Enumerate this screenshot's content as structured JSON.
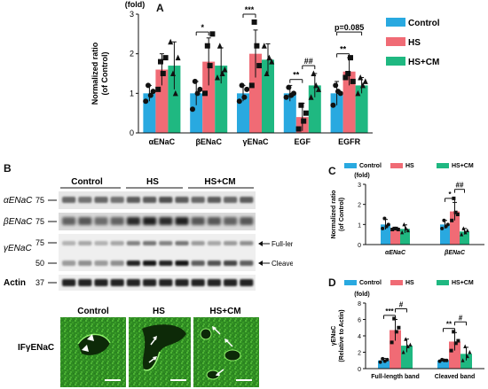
{
  "panels": {
    "a": "A",
    "b": "B",
    "c": "C",
    "d": "D"
  },
  "colors": {
    "control": "#29a9e0",
    "hs": "#f06b75",
    "hscm": "#1fb881"
  },
  "legend": [
    "Control",
    "HS",
    "HS+CM"
  ],
  "blot": {
    "groups": [
      "Control",
      "HS",
      "HS+CM"
    ],
    "rows": [
      {
        "label": "αENaC",
        "mw": "75"
      },
      {
        "label": "βENaC",
        "mw": "75"
      },
      {
        "label": "γENaC",
        "mw": "75"
      },
      {
        "label": "",
        "mw": "50"
      },
      {
        "label": "Actin",
        "mw": "37"
      }
    ],
    "full_length": "Full-length band",
    "cleaved": "Cleaved band"
  },
  "if_panel": {
    "label": "IFγENaC",
    "groups": [
      "Control",
      "HS",
      "HS+CM"
    ]
  },
  "chart_data": [
    {
      "type": "bar",
      "panel": "A",
      "unit_label": "(fold)",
      "ylabel": "Normalized ratio\n(of Control)",
      "categories": [
        "αENaC",
        "βENaC",
        "γENaC",
        "EGF",
        "EGFR"
      ],
      "ylim": [
        0,
        3
      ],
      "yticks": [
        0,
        1,
        2,
        3
      ],
      "series": [
        {
          "name": "Control",
          "values": [
            1.0,
            1.0,
            1.0,
            1.0,
            1.0
          ],
          "err": [
            0.2,
            0.3,
            0.2,
            0.2,
            0.3
          ],
          "points": [
            [
              0.8,
              1.2,
              0.95,
              1.05
            ],
            [
              0.6,
              1.3,
              1.0,
              1.1
            ],
            [
              0.8,
              1.2,
              0.9,
              1.1
            ],
            [
              0.9,
              1.15,
              0.95,
              1.0
            ],
            [
              0.7,
              1.2,
              1.05,
              1.0
            ]
          ]
        },
        {
          "name": "HS",
          "values": [
            1.6,
            1.8,
            2.0,
            0.4,
            1.55
          ],
          "err": [
            0.4,
            0.6,
            0.6,
            0.35,
            0.35
          ],
          "points": [
            [
              1.1,
              1.8,
              1.5,
              1.9
            ],
            [
              1.0,
              2.2,
              1.7,
              2.5
            ],
            [
              1.2,
              2.8,
              2.2,
              1.7
            ],
            [
              0.1,
              0.7,
              0.3,
              0.5
            ],
            [
              1.4,
              1.5,
              1.9,
              1.3
            ]
          ]
        },
        {
          "name": "HS+CM",
          "values": [
            1.7,
            1.7,
            1.85,
            1.2,
            1.2
          ],
          "err": [
            0.6,
            0.45,
            0.4,
            0.3,
            0.2
          ],
          "points": [
            [
              2.3,
              1.5,
              1.0,
              1.9
            ],
            [
              1.4,
              2.2,
              1.5,
              1.6
            ],
            [
              2.2,
              1.5,
              1.9,
              1.8
            ],
            [
              0.9,
              1.5,
              1.2,
              1.1
            ],
            [
              1.0,
              1.4,
              1.2,
              1.3
            ]
          ]
        }
      ],
      "annotations": [
        {
          "text": "*",
          "cat": 1,
          "from": 0,
          "to": 1,
          "level": 2.55
        },
        {
          "text": "***",
          "cat": 2,
          "from": 0,
          "to": 1,
          "level": 3.0
        },
        {
          "text": "**",
          "cat": 3,
          "from": 0,
          "to": 1,
          "level": 1.35
        },
        {
          "text": "##",
          "cat": 3,
          "from": 1,
          "to": 2,
          "level": 1.7
        },
        {
          "text": "**",
          "cat": 4,
          "from": 0,
          "to": 1,
          "level": 2.0
        },
        {
          "text": "p=0.085",
          "cat": 4,
          "from": 0,
          "to": 2,
          "level": 2.55
        }
      ]
    },
    {
      "type": "bar",
      "panel": "C",
      "unit_label": "(fold)",
      "ylabel": "Normalized ratio\n(of Control)",
      "categories": [
        "αENaC",
        "βENaC"
      ],
      "ylim": [
        0,
        3
      ],
      "yticks": [
        0,
        1,
        2,
        3
      ],
      "series": [
        {
          "name": "Control",
          "values": [
            1.0,
            1.0
          ],
          "err": [
            0.25,
            0.2
          ],
          "points": [
            [
              0.8,
              1.3,
              0.9,
              1.0
            ],
            [
              0.8,
              1.2,
              0.9,
              1.0
            ]
          ]
        },
        {
          "name": "HS",
          "values": [
            0.78,
            1.65
          ],
          "err": [
            0.05,
            0.45
          ],
          "points": [
            [
              0.75,
              0.8,
              0.8,
              0.75
            ],
            [
              1.2,
              2.3,
              1.6,
              1.5
            ]
          ]
        },
        {
          "name": "HS+CM",
          "values": [
            0.78,
            0.65
          ],
          "err": [
            0.2,
            0.15
          ],
          "points": [
            [
              0.6,
              1.0,
              0.8,
              0.7
            ],
            [
              0.5,
              0.8,
              0.6,
              0.7
            ]
          ]
        }
      ],
      "annotations": [
        {
          "text": "*",
          "cat": 1,
          "from": 0,
          "to": 1,
          "level": 2.3
        },
        {
          "text": "##",
          "cat": 1,
          "from": 1,
          "to": 2,
          "level": 2.75
        }
      ]
    },
    {
      "type": "bar",
      "panel": "D",
      "unit_label": "(fold)",
      "ylabel": "γENaC\n(Relative to Actin)",
      "categories": [
        "Full-length band",
        "Cleaved band"
      ],
      "ylim": [
        0,
        8
      ],
      "yticks": [
        0,
        2,
        4,
        6,
        8
      ],
      "series": [
        {
          "name": "Control",
          "values": [
            1.0,
            1.0
          ],
          "err": [
            0.25,
            0.15
          ],
          "points": [
            [
              0.8,
              1.2,
              0.9,
              1.1
            ],
            [
              0.9,
              1.1,
              1.0,
              1.0
            ]
          ]
        },
        {
          "name": "HS",
          "values": [
            4.7,
            3.3
          ],
          "err": [
            1.3,
            1.1
          ],
          "points": [
            [
              3.2,
              6.1,
              4.5,
              5.0
            ],
            [
              2.2,
              4.5,
              3.1,
              3.4
            ]
          ]
        },
        {
          "name": "HS+CM",
          "values": [
            2.8,
            1.8
          ],
          "err": [
            0.8,
            0.8
          ],
          "points": [
            [
              2.0,
              3.6,
              2.7,
              2.9
            ],
            [
              1.0,
              2.7,
              1.5,
              2.0
            ]
          ]
        }
      ],
      "annotations": [
        {
          "text": "***",
          "cat": 0,
          "from": 0,
          "to": 1,
          "level": 6.5
        },
        {
          "text": "#",
          "cat": 0,
          "from": 1,
          "to": 2,
          "level": 7.3
        },
        {
          "text": "**",
          "cat": 1,
          "from": 0,
          "to": 1,
          "level": 4.9
        },
        {
          "text": "#",
          "cat": 1,
          "from": 1,
          "to": 2,
          "level": 5.7
        }
      ]
    }
  ]
}
